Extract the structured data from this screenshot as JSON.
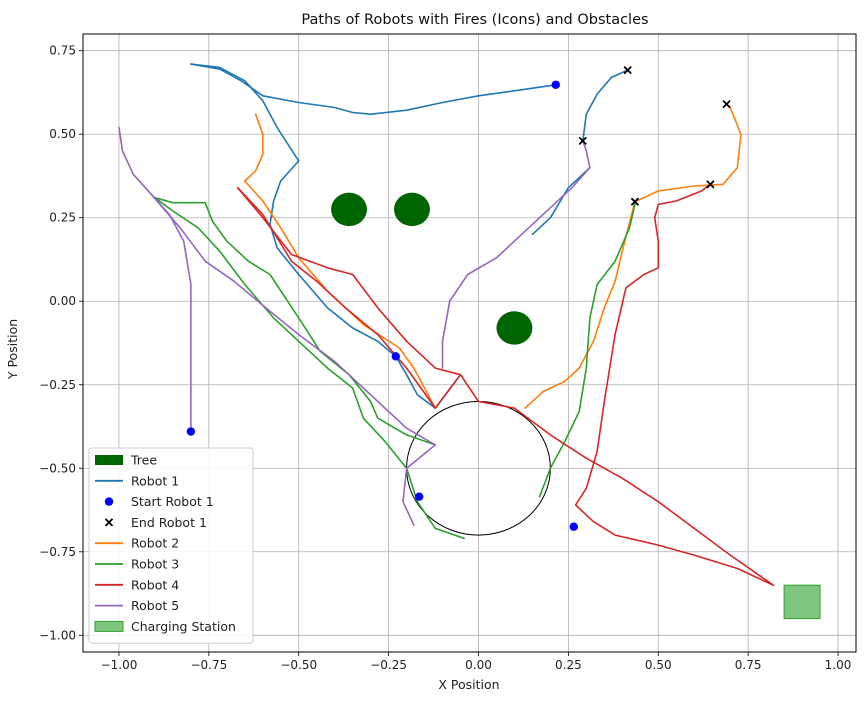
{
  "chart_data": {
    "type": "line",
    "title": "Paths of Robots with Fires (Icons) and Obstacles",
    "xlabel": "X Position",
    "ylabel": "Y Position",
    "xlim": [
      -1.1,
      1.05
    ],
    "ylim": [
      -1.05,
      0.8
    ],
    "xticks": [
      -1.0,
      -0.75,
      -0.5,
      -0.25,
      0.0,
      0.25,
      0.5,
      0.75,
      1.0
    ],
    "yticks": [
      -1.0,
      -0.75,
      -0.5,
      -0.25,
      0.0,
      0.25,
      0.5,
      0.75
    ],
    "xtick_labels": [
      "−1.00",
      "−0.75",
      "−0.50",
      "−0.25",
      "0.00",
      "0.25",
      "0.50",
      "0.75",
      "1.00"
    ],
    "ytick_labels": [
      "−1.00",
      "−0.75",
      "−0.50",
      "−0.25",
      "0.00",
      "0.25",
      "0.50",
      "0.75"
    ],
    "grid": true,
    "legend_position": "lower-left",
    "trees": {
      "name": "Tree",
      "color": "#006400",
      "centers": [
        [
          -0.36,
          0.275
        ],
        [
          -0.185,
          0.275
        ],
        [
          0.1,
          -0.08
        ]
      ],
      "radius": 0.05
    },
    "circular_obstacle": {
      "center": [
        0.0,
        -0.5
      ],
      "radius": 0.2,
      "color": "#000000"
    },
    "charging_station": {
      "name": "Charging Station",
      "x": [
        0.85,
        0.95
      ],
      "y": [
        -0.95,
        -0.85
      ],
      "color": "#2ca02c"
    },
    "start_points": {
      "name": "Start Robot 1",
      "color": "#0000ff",
      "points": [
        [
          0.215,
          0.648
        ],
        [
          -0.8,
          -0.39
        ],
        [
          -0.165,
          -0.585
        ],
        [
          0.265,
          -0.675
        ],
        [
          -0.23,
          -0.165
        ]
      ]
    },
    "end_points": {
      "name": "End Robot 1",
      "color": "#000000",
      "points": [
        [
          0.415,
          0.692
        ],
        [
          0.29,
          0.48
        ],
        [
          0.435,
          0.298
        ],
        [
          0.69,
          0.59
        ],
        [
          0.645,
          0.35
        ]
      ]
    },
    "series": [
      {
        "name": "Robot 1",
        "color": "#1f77b4",
        "paths": [
          [
            [
              0.215,
              0.648
            ],
            [
              0.1,
              0.63
            ],
            [
              0.0,
              0.615
            ],
            [
              -0.1,
              0.595
            ],
            [
              -0.2,
              0.572
            ],
            [
              -0.3,
              0.56
            ],
            [
              -0.35,
              0.565
            ],
            [
              -0.4,
              0.58
            ],
            [
              -0.5,
              0.595
            ],
            [
              -0.6,
              0.615
            ],
            [
              -0.62,
              0.63
            ],
            [
              -0.66,
              0.66
            ],
            [
              -0.72,
              0.695
            ],
            [
              -0.8,
              0.71
            ]
          ],
          [
            [
              -0.8,
              0.71
            ],
            [
              -0.72,
              0.7
            ],
            [
              -0.65,
              0.66
            ],
            [
              -0.6,
              0.6
            ],
            [
              -0.56,
              0.52
            ],
            [
              -0.5,
              0.42
            ]
          ],
          [
            [
              -0.5,
              0.42
            ],
            [
              -0.55,
              0.36
            ],
            [
              -0.57,
              0.3
            ],
            [
              -0.58,
              0.23
            ],
            [
              -0.56,
              0.16
            ],
            [
              -0.5,
              0.08
            ],
            [
              -0.42,
              -0.02
            ],
            [
              -0.35,
              -0.08
            ],
            [
              -0.28,
              -0.12
            ],
            [
              -0.23,
              -0.165
            ],
            [
              -0.2,
              -0.22
            ],
            [
              -0.17,
              -0.28
            ],
            [
              -0.12,
              -0.32
            ],
            [
              -0.05,
              -0.22
            ]
          ],
          [
            [
              0.29,
              0.48
            ],
            [
              0.3,
              0.56
            ],
            [
              0.33,
              0.62
            ],
            [
              0.37,
              0.67
            ],
            [
              0.415,
              0.692
            ]
          ],
          [
            [
              0.31,
              0.4
            ],
            [
              0.25,
              0.34
            ],
            [
              0.2,
              0.25
            ],
            [
              0.15,
              0.2
            ]
          ]
        ]
      },
      {
        "name": "Robot 2",
        "color": "#ff7f0e",
        "paths": [
          [
            [
              -0.65,
              0.36
            ],
            [
              -0.62,
              0.39
            ],
            [
              -0.6,
              0.44
            ],
            [
              -0.6,
              0.5
            ],
            [
              -0.62,
              0.56
            ]
          ],
          [
            [
              -0.65,
              0.36
            ],
            [
              -0.6,
              0.3
            ],
            [
              -0.55,
              0.22
            ],
            [
              -0.5,
              0.13
            ],
            [
              -0.42,
              0.03
            ],
            [
              -0.32,
              -0.07
            ],
            [
              -0.22,
              -0.14
            ],
            [
              -0.18,
              -0.2
            ],
            [
              -0.15,
              -0.26
            ],
            [
              -0.12,
              -0.32
            ]
          ],
          [
            [
              0.13,
              -0.32
            ],
            [
              0.18,
              -0.27
            ],
            [
              0.24,
              -0.24
            ],
            [
              0.28,
              -0.2
            ],
            [
              0.32,
              -0.12
            ],
            [
              0.35,
              -0.02
            ],
            [
              0.38,
              0.06
            ],
            [
              0.4,
              0.15
            ],
            [
              0.435,
              0.298
            ]
          ],
          [
            [
              0.435,
              0.298
            ],
            [
              0.5,
              0.33
            ],
            [
              0.6,
              0.345
            ],
            [
              0.68,
              0.35
            ],
            [
              0.72,
              0.4
            ],
            [
              0.73,
              0.5
            ],
            [
              0.7,
              0.58
            ],
            [
              0.69,
              0.59
            ]
          ]
        ]
      },
      {
        "name": "Robot 3",
        "color": "#2ca02c",
        "paths": [
          [
            [
              -0.9,
              0.31
            ],
            [
              -0.85,
              0.295
            ],
            [
              -0.8,
              0.295
            ],
            [
              -0.76,
              0.295
            ],
            [
              -0.74,
              0.24
            ],
            [
              -0.7,
              0.18
            ],
            [
              -0.64,
              0.12
            ],
            [
              -0.58,
              0.08
            ],
            [
              -0.5,
              -0.05
            ],
            [
              -0.44,
              -0.15
            ],
            [
              -0.36,
              -0.22
            ],
            [
              -0.3,
              -0.3
            ],
            [
              -0.28,
              -0.35
            ],
            [
              -0.2,
              -0.4
            ],
            [
              -0.12,
              -0.43
            ]
          ],
          [
            [
              -0.9,
              0.31
            ],
            [
              -0.85,
              0.27
            ],
            [
              -0.78,
              0.22
            ],
            [
              -0.72,
              0.15
            ],
            [
              -0.65,
              0.05
            ],
            [
              -0.57,
              -0.05
            ],
            [
              -0.5,
              -0.12
            ],
            [
              -0.42,
              -0.2
            ],
            [
              -0.35,
              -0.26
            ],
            [
              -0.32,
              -0.35
            ],
            [
              -0.26,
              -0.42
            ],
            [
              -0.2,
              -0.5
            ],
            [
              -0.17,
              -0.6
            ],
            [
              -0.12,
              -0.68
            ],
            [
              -0.04,
              -0.71
            ]
          ],
          [
            [
              0.17,
              -0.585
            ],
            [
              0.2,
              -0.5
            ],
            [
              0.24,
              -0.42
            ],
            [
              0.28,
              -0.33
            ],
            [
              0.3,
              -0.2
            ],
            [
              0.31,
              -0.05
            ],
            [
              0.33,
              0.05
            ],
            [
              0.38,
              0.12
            ],
            [
              0.42,
              0.22
            ],
            [
              0.435,
              0.29
            ]
          ]
        ]
      },
      {
        "name": "Robot 4",
        "color": "#d62728",
        "paths": [
          [
            [
              -0.67,
              0.34
            ],
            [
              -0.6,
              0.26
            ],
            [
              -0.52,
              0.12
            ],
            [
              -0.45,
              0.06
            ],
            [
              -0.37,
              -0.02
            ],
            [
              -0.28,
              -0.1
            ],
            [
              -0.2,
              -0.2
            ],
            [
              -0.12,
              -0.32
            ]
          ],
          [
            [
              -0.67,
              0.34
            ],
            [
              -0.6,
              0.25
            ],
            [
              -0.52,
              0.14
            ],
            [
              -0.42,
              0.1
            ],
            [
              -0.35,
              0.08
            ],
            [
              -0.28,
              -0.02
            ],
            [
              -0.2,
              -0.12
            ],
            [
              -0.12,
              -0.2
            ],
            [
              -0.05,
              -0.22
            ],
            [
              -0.12,
              -0.32
            ]
          ],
          [
            [
              0.82,
              -0.85
            ],
            [
              0.72,
              -0.8
            ],
            [
              0.6,
              -0.76
            ],
            [
              0.5,
              -0.73
            ],
            [
              0.38,
              -0.7
            ],
            [
              0.32,
              -0.66
            ],
            [
              0.27,
              -0.61
            ],
            [
              0.3,
              -0.56
            ],
            [
              0.33,
              -0.45
            ],
            [
              0.35,
              -0.3
            ],
            [
              0.38,
              -0.1
            ],
            [
              0.41,
              0.04
            ],
            [
              0.46,
              0.08
            ],
            [
              0.5,
              0.1
            ],
            [
              0.5,
              0.18
            ],
            [
              0.49,
              0.25
            ],
            [
              0.5,
              0.29
            ],
            [
              0.55,
              0.3
            ],
            [
              0.62,
              0.33
            ],
            [
              0.645,
              0.35
            ]
          ],
          [
            [
              0.82,
              -0.85
            ],
            [
              0.7,
              -0.76
            ],
            [
              0.6,
              -0.68
            ],
            [
              0.5,
              -0.6
            ],
            [
              0.4,
              -0.53
            ],
            [
              0.3,
              -0.47
            ],
            [
              0.2,
              -0.4
            ],
            [
              0.1,
              -0.32
            ],
            [
              0.0,
              -0.3
            ],
            [
              -0.05,
              -0.22
            ]
          ]
        ]
      },
      {
        "name": "Robot 5",
        "color": "#9467bd",
        "paths": [
          [
            [
              -1.0,
              0.52
            ],
            [
              -0.99,
              0.45
            ],
            [
              -0.96,
              0.38
            ],
            [
              -0.91,
              0.32
            ],
            [
              -0.86,
              0.26
            ],
            [
              -0.82,
              0.18
            ],
            [
              -0.8,
              0.05
            ],
            [
              -0.8,
              -0.1
            ],
            [
              -0.8,
              -0.39
            ]
          ],
          [
            [
              -0.91,
              0.32
            ],
            [
              -0.83,
              0.22
            ],
            [
              -0.76,
              0.12
            ],
            [
              -0.68,
              0.06
            ],
            [
              -0.58,
              -0.03
            ],
            [
              -0.5,
              -0.1
            ],
            [
              -0.4,
              -0.18
            ],
            [
              -0.32,
              -0.26
            ],
            [
              -0.25,
              -0.33
            ],
            [
              -0.2,
              -0.38
            ],
            [
              -0.12,
              -0.43
            ]
          ],
          [
            [
              -0.12,
              -0.43
            ],
            [
              -0.2,
              -0.5
            ],
            [
              -0.21,
              -0.6
            ],
            [
              -0.18,
              -0.67
            ]
          ],
          [
            [
              -0.1,
              -0.2
            ],
            [
              -0.1,
              -0.12
            ],
            [
              -0.08,
              0.0
            ],
            [
              -0.03,
              0.08
            ],
            [
              0.05,
              0.13
            ],
            [
              0.12,
              0.2
            ],
            [
              0.2,
              0.28
            ],
            [
              0.26,
              0.34
            ],
            [
              0.31,
              0.4
            ],
            [
              0.3,
              0.45
            ],
            [
              0.29,
              0.48
            ]
          ]
        ]
      }
    ],
    "legend": [
      "Tree",
      "Robot 1",
      "Start Robot 1",
      "End Robot 1",
      "Robot 2",
      "Robot 3",
      "Robot 4",
      "Robot 5",
      "Charging Station"
    ]
  }
}
